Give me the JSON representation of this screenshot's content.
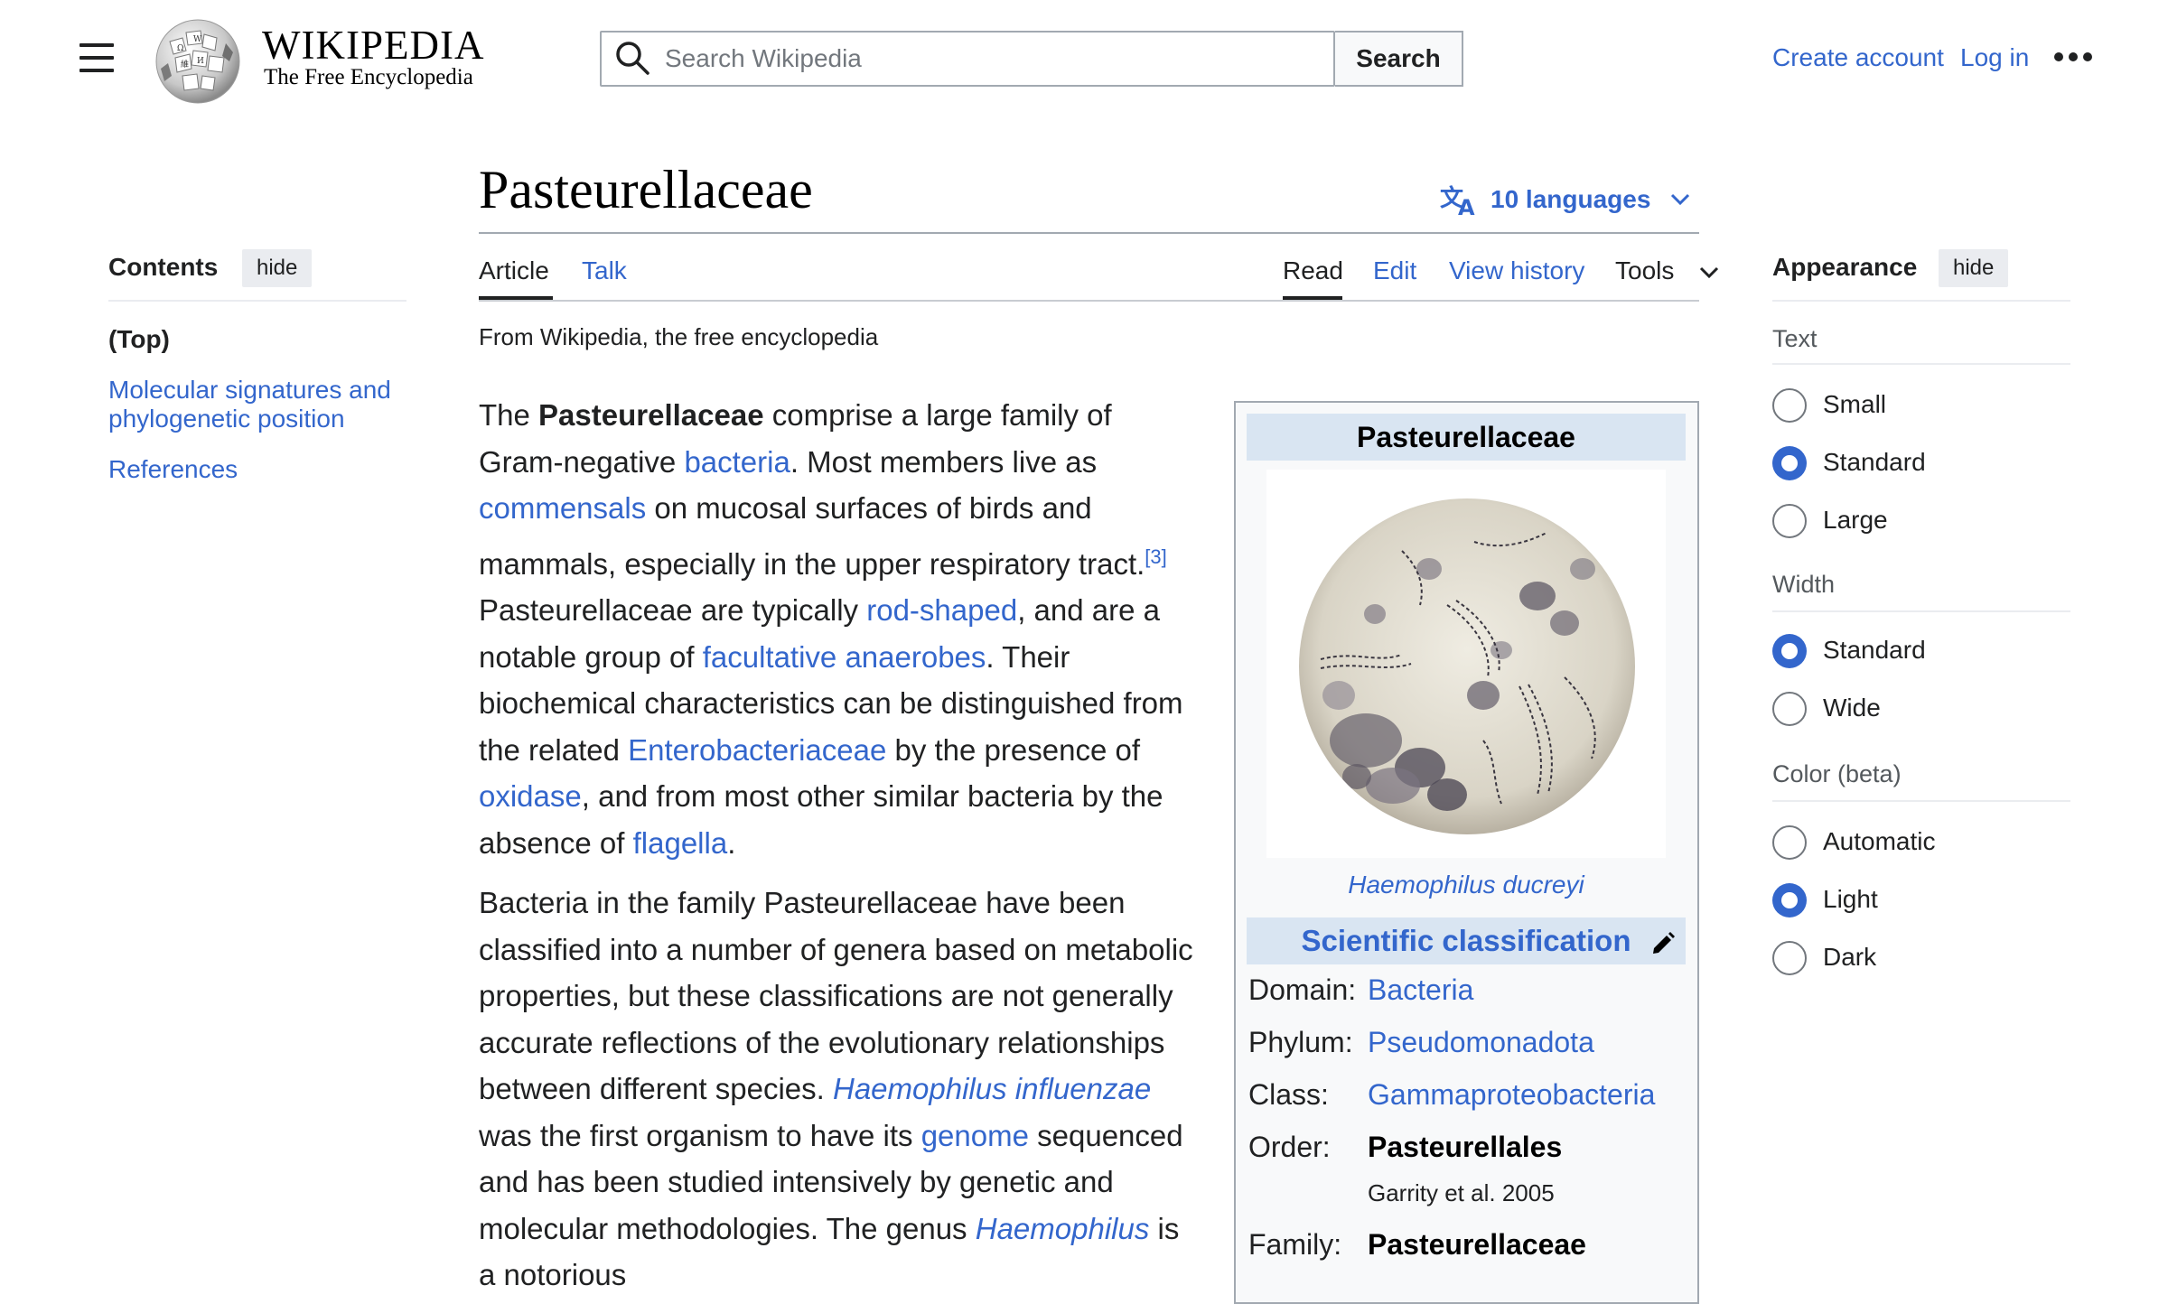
{
  "header": {
    "wordmark": "WIKIPEDIA",
    "tagline": "The Free Encyclopedia",
    "search_placeholder": "Search Wikipedia",
    "search_button": "Search",
    "create_account": "Create account",
    "log_in": "Log in"
  },
  "page": {
    "title": "Pasteurellaceae",
    "languages": "10 languages",
    "tabs_left": [
      "Article",
      "Talk"
    ],
    "tabs_right": [
      "Read",
      "Edit",
      "View history",
      "Tools"
    ],
    "tagline": "From Wikipedia, the free encyclopedia"
  },
  "toc": {
    "heading": "Contents",
    "hide": "hide",
    "top": "(Top)",
    "items": [
      "Molecular signatures and phylogenetic position",
      "References"
    ]
  },
  "article": {
    "p1": {
      "t1": "The ",
      "bold": "Pasteurellaceae",
      "t2": " comprise a large family of Gram-negative ",
      "l1": "bacteria",
      "t3": ". Most members live as ",
      "l2": "commensals",
      "t4": " on mucosal surfaces of birds and mammals, especially in the upper respiratory tract.",
      "ref": "[3]",
      "t5": " Pasteurellaceae are typically ",
      "l3": "rod-shaped",
      "t6": ", and are a notable group of ",
      "l4": "facultative anaerobes",
      "t7": ". Their biochemical characteristics can be distinguished from the related ",
      "l5": "Enterobacteriaceae",
      "t8": " by the presence of ",
      "l6": "oxidase",
      "t9": ", and from most other similar bacteria by the absence of ",
      "l7": "flagella",
      "t10": "."
    },
    "p2": {
      "t1": "Bacteria in the family Pasteurellaceae have been classified into a number of genera based on metabolic properties, but these classifications are not generally accurate reflections of the evolutionary relationships between different species. ",
      "l1": "Haemophilus influenzae",
      "t2": " was the first organism to have its ",
      "l2": "genome",
      "t3": " sequenced and has been studied intensively by genetic and molecular methodologies. The genus ",
      "l3": "Haemophilus",
      "t4": " is a notorious"
    }
  },
  "infobox": {
    "title": "Pasteurellaceae",
    "caption": "Haemophilus ducreyi",
    "classification": "Scientific classification",
    "rows": [
      {
        "label": "Domain:",
        "value": "Bacteria"
      },
      {
        "label": "Phylum:",
        "value": "Pseudomonadota"
      },
      {
        "label": "Class:",
        "value": "Gammaproteobacteria"
      },
      {
        "label": "Order:",
        "value": "Pasteurellales"
      },
      {
        "label": "Family:",
        "value": "Pasteurellaceae"
      }
    ],
    "order_authority": "Garrity et al. 2005"
  },
  "appearance": {
    "heading": "Appearance",
    "hide": "hide",
    "text_group": "Text",
    "text_options": [
      "Small",
      "Standard",
      "Large"
    ],
    "text_selected": "Standard",
    "width_group": "Width",
    "width_options": [
      "Standard",
      "Wide"
    ],
    "width_selected": "Standard",
    "color_group": "Color (beta)",
    "color_options": [
      "Automatic",
      "Light",
      "Dark"
    ],
    "color_selected": "Light"
  }
}
